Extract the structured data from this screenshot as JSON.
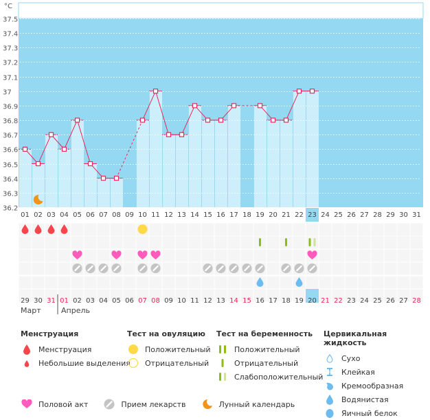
{
  "chart_data": {
    "type": "line",
    "title": "",
    "ylabel": "°C",
    "xlabel": "",
    "ylim": [
      36.2,
      37.5
    ],
    "yticks": [
      "36.2",
      "36.3",
      "36.4",
      "36.5",
      "36.6",
      "36.7",
      "36.8",
      "36.9",
      "37",
      "37.1",
      "37.2",
      "37.3",
      "37.4",
      "37.5"
    ],
    "grid": true,
    "cycle_days": [
      "01",
      "02",
      "03",
      "04",
      "05",
      "06",
      "07",
      "08",
      "09",
      "10",
      "11",
      "12",
      "13",
      "14",
      "15",
      "16",
      "17",
      "18",
      "19",
      "20",
      "21",
      "22",
      "23",
      "24",
      "25",
      "26",
      "27",
      "28",
      "29",
      "30",
      "31"
    ],
    "highlight_day": "23",
    "temperatures": [
      36.6,
      36.5,
      36.7,
      36.6,
      36.8,
      36.5,
      36.4,
      36.4,
      null,
      36.8,
      37.0,
      36.7,
      36.7,
      36.9,
      36.8,
      36.8,
      36.9,
      null,
      36.9,
      36.8,
      36.8,
      37.0,
      37.0,
      null,
      null,
      null,
      null,
      null,
      null,
      null,
      null
    ],
    "dashed_gaps": [
      [
        8,
        10
      ]
    ],
    "dotted_gaps": [
      [
        17,
        19
      ]
    ],
    "moon_day": "02",
    "calendar_dates": [
      {
        "d": "29",
        "red": false
      },
      {
        "d": "30",
        "red": false
      },
      {
        "d": "31",
        "red": true
      },
      {
        "d": "01",
        "red": true
      },
      {
        "d": "02",
        "red": false
      },
      {
        "d": "03",
        "red": false
      },
      {
        "d": "04",
        "red": false
      },
      {
        "d": "05",
        "red": false
      },
      {
        "d": "06",
        "red": false
      },
      {
        "d": "07",
        "red": true
      },
      {
        "d": "08",
        "red": true
      },
      {
        "d": "09",
        "red": false
      },
      {
        "d": "10",
        "red": false
      },
      {
        "d": "11",
        "red": false
      },
      {
        "d": "12",
        "red": false
      },
      {
        "d": "13",
        "red": false
      },
      {
        "d": "14",
        "red": true
      },
      {
        "d": "15",
        "red": true
      },
      {
        "d": "16",
        "red": false
      },
      {
        "d": "17",
        "red": false
      },
      {
        "d": "18",
        "red": false
      },
      {
        "d": "19",
        "red": false
      },
      {
        "d": "20",
        "red": false
      },
      {
        "d": "21",
        "red": true
      },
      {
        "d": "22",
        "red": true
      },
      {
        "d": "23",
        "red": false
      },
      {
        "d": "24",
        "red": false
      },
      {
        "d": "25",
        "red": false
      },
      {
        "d": "26",
        "red": false
      },
      {
        "d": "27",
        "red": false
      },
      {
        "d": "28",
        "red": true
      }
    ],
    "highlight_date": "20",
    "events": {
      "menstruation": [
        "01",
        "02",
        "03",
        "04"
      ],
      "ovulation_positive": [
        "10"
      ],
      "pregnancy_negative": [
        "19",
        "21"
      ],
      "pregnancy_weak_positive": [
        "23"
      ],
      "intercourse": [
        "05",
        "08",
        "10",
        "11",
        "23"
      ],
      "medication": [
        "05",
        "06",
        "07",
        "08",
        "10",
        "11",
        "15",
        "16",
        "17",
        "18",
        "19",
        "21",
        "22",
        "23"
      ],
      "fluid_watery": [
        "19",
        "22"
      ]
    }
  },
  "months": {
    "left": "Март",
    "right": "Апрель"
  },
  "legend": {
    "menstruation": {
      "title": "Менструация",
      "items": [
        "Менструация",
        "Небольшие выделения"
      ]
    },
    "ovulation": {
      "title": "Тест на овуляцию",
      "items": [
        "Положительный",
        "Отрицательный"
      ]
    },
    "pregnancy": {
      "title": "Тест на беременность",
      "items": [
        "Положительный",
        "Отрицательный",
        "Слабоположительный"
      ]
    },
    "fluid": {
      "title": "Цервикальная жидкость",
      "items": [
        "Сухо",
        "Клейкая",
        "Кремообразная",
        "Водянистая",
        "Яичный белок"
      ]
    },
    "other": [
      "Половой акт",
      "Прием лекарств",
      "Лунный календарь"
    ]
  },
  "colors": {
    "sky": "#94d8f2",
    "bar": "#cdeefb",
    "line": "#e8285a",
    "drop": "#f5464d",
    "heart": "#ff5bbd",
    "pill": "#c4c4c4",
    "ovul": "#ffd94a",
    "preg": "#8cbd15",
    "preg_weak": "#cfe3a0",
    "fluid": "#6cbcef",
    "moon": "#f3931a"
  }
}
